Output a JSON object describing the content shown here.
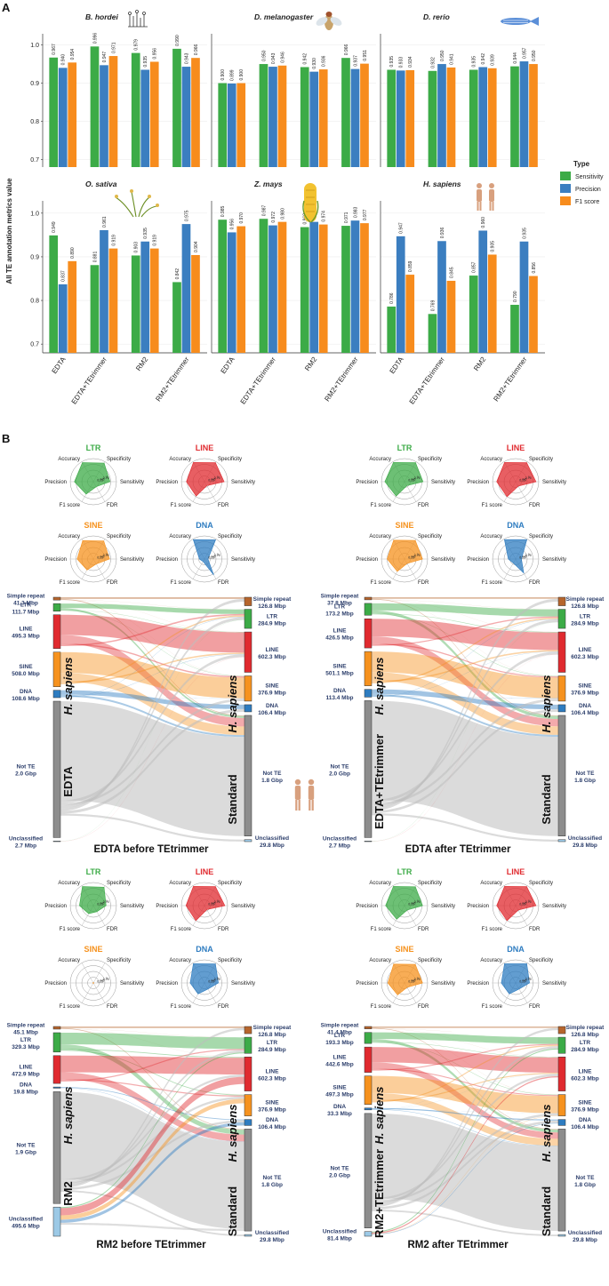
{
  "panels": {
    "a": "A",
    "b": "B"
  },
  "colors": {
    "Sensitivity": "#3cab47",
    "Precision": "#3b7ec0",
    "F1 score": "#f78c1d",
    "LTR": "#3cab47",
    "LINE": "#e02a2f",
    "SINE": "#f6921e",
    "DNA": "#2e7cc0",
    "Simple repeat": "#b6652c",
    "Not TE": "#8d8d8d",
    "Unclassified": "#9cc9e6"
  },
  "chart_data": [
    {
      "type": "bar",
      "ylabel": "All TE annotation metrics value",
      "ylim": [
        0.68,
        1.02
      ],
      "legend_title": "Type",
      "legend": [
        "Sensitivity",
        "Precision",
        "F1 score"
      ],
      "categories": [
        "EDTA",
        "EDTA+TEtrimmer",
        "RM2",
        "RM2+TEtrimmer"
      ],
      "facets": [
        {
          "title": "B. hordei",
          "values": [
            [
              0.967,
              0.94,
              0.954
            ],
            [
              0.996,
              0.947,
              0.971
            ],
            [
              0.979,
              0.935,
              0.956
            ],
            [
              0.99,
              0.943,
              0.966
            ]
          ]
        },
        {
          "title": "D. melanogaster",
          "values": [
            [
              0.9,
              0.899,
              0.9
            ],
            [
              0.95,
              0.943,
              0.946
            ],
            [
              0.942,
              0.93,
              0.936
            ],
            [
              0.966,
              0.937,
              0.951
            ]
          ]
        },
        {
          "title": "D. rerio",
          "values": [
            [
              0.935,
              0.933,
              0.934
            ],
            [
              0.932,
              0.95,
              0.941
            ],
            [
              0.935,
              0.942,
              0.939
            ],
            [
              0.944,
              0.957,
              0.95
            ]
          ]
        },
        {
          "title": "O. sativa",
          "values": [
            [
              0.949,
              0.837,
              0.89
            ],
            [
              0.881,
              0.961,
              0.919
            ],
            [
              0.903,
              0.935,
              0.919
            ],
            [
              0.842,
              0.975,
              0.904
            ]
          ]
        },
        {
          "title": "Z. mays",
          "values": [
            [
              0.985,
              0.956,
              0.97
            ],
            [
              0.987,
              0.972,
              0.98
            ],
            [
              0.968,
              0.98,
              0.974
            ],
            [
              0.971,
              0.983,
              0.977
            ]
          ]
        },
        {
          "title": "H. sapiens",
          "values": [
            [
              0.786,
              0.947,
              0.859
            ],
            [
              0.769,
              0.936,
              0.845
            ],
            [
              0.857,
              0.96,
              0.905
            ],
            [
              0.79,
              0.935,
              0.856
            ]
          ]
        }
      ]
    },
    {
      "type": "radar",
      "axes": [
        "Accuracy",
        "Specificity",
        "Sensitivity",
        "FDR",
        "F1 score",
        "Precision"
      ],
      "ticks": [
        "0.25",
        "0.5",
        "0.75",
        "1"
      ],
      "groups": [
        {
          "title": "EDTA before TEtrimmer",
          "series": [
            {
              "name": "LTR",
              "values": [
                0.95,
                0.93,
                0.72,
                0.25,
                0.62,
                0.82
              ]
            },
            {
              "name": "LINE",
              "values": [
                0.96,
                0.95,
                0.85,
                0.2,
                0.72,
                0.78
              ]
            },
            {
              "name": "SINE",
              "values": [
                0.92,
                0.9,
                0.7,
                0.25,
                0.55,
                0.7
              ]
            },
            {
              "name": "DNA",
              "values": [
                0.97,
                0.96,
                0.15,
                0.8,
                0.12,
                0.22
              ]
            }
          ]
        },
        {
          "title": "EDTA after TEtrimmer",
          "series": [
            {
              "name": "LTR",
              "values": [
                0.96,
                0.95,
                0.8,
                0.2,
                0.72,
                0.85
              ]
            },
            {
              "name": "LINE",
              "values": [
                0.96,
                0.95,
                0.88,
                0.22,
                0.75,
                0.82
              ]
            },
            {
              "name": "SINE",
              "values": [
                0.94,
                0.93,
                0.78,
                0.22,
                0.62,
                0.75
              ]
            },
            {
              "name": "DNA",
              "values": [
                0.97,
                0.97,
                0.25,
                0.7,
                0.2,
                0.32
              ]
            }
          ]
        },
        {
          "title": "RM2 before TEtrimmer",
          "series": [
            {
              "name": "LTR",
              "values": [
                0.95,
                0.92,
                0.55,
                0.3,
                0.4,
                0.6
              ]
            },
            {
              "name": "LINE",
              "values": [
                0.96,
                0.95,
                0.88,
                0.2,
                0.75,
                0.8
              ]
            },
            {
              "name": "SINE",
              "values": [
                0.02,
                0.02,
                0.02,
                0.02,
                0.02,
                0.02
              ]
            },
            {
              "name": "DNA",
              "values": [
                0.96,
                0.95,
                0.6,
                0.3,
                0.55,
                0.62
              ]
            }
          ]
        },
        {
          "title": "RM2 after TEtrimmer",
          "series": [
            {
              "name": "LTR",
              "values": [
                0.96,
                0.94,
                0.78,
                0.22,
                0.68,
                0.82
              ]
            },
            {
              "name": "LINE",
              "values": [
                0.96,
                0.95,
                0.88,
                0.22,
                0.75,
                0.82
              ]
            },
            {
              "name": "SINE",
              "values": [
                0.94,
                0.93,
                0.78,
                0.22,
                0.6,
                0.72
              ]
            },
            {
              "name": "DNA",
              "values": [
                0.96,
                0.96,
                0.6,
                0.3,
                0.55,
                0.62
              ]
            }
          ]
        }
      ]
    },
    {
      "type": "sankey",
      "species": "H. sapiens",
      "standard": {
        "name": "Standard",
        "nodes": [
          {
            "cat": "Simple repeat",
            "label": "Simple repeat",
            "value": "126.8 Mbp",
            "mb": 126.8
          },
          {
            "cat": "LTR",
            "label": "LTR",
            "value": "284.9 Mbp",
            "mb": 284.9
          },
          {
            "cat": "LINE",
            "label": "LINE",
            "value": "602.3 Mbp",
            "mb": 602.3
          },
          {
            "cat": "SINE",
            "label": "SINE",
            "value": "376.9 Mbp",
            "mb": 376.9
          },
          {
            "cat": "DNA",
            "label": "DNA",
            "value": "106.4 Mbp",
            "mb": 106.4
          },
          {
            "cat": "Not TE",
            "label": "Not TE",
            "value": "1.8 Gbp",
            "mb": 1800
          },
          {
            "cat": "Unclassified",
            "label": "Unclassified",
            "value": "29.8 Mbp",
            "mb": 29.8
          }
        ]
      },
      "diagrams": [
        {
          "title": "EDTA before TEtrimmer",
          "method": "EDTA",
          "nodes": [
            {
              "cat": "Simple repeat",
              "label": "Simple repeat",
              "value": "41.3 Mbp",
              "mb": 41.3
            },
            {
              "cat": "LTR",
              "label": "LTR",
              "value": "111.7 Mbp",
              "mb": 111.7
            },
            {
              "cat": "LINE",
              "label": "LINE",
              "value": "495.3 Mbp",
              "mb": 495.3
            },
            {
              "cat": "SINE",
              "label": "SINE",
              "value": "508.0 Mbp",
              "mb": 508.0
            },
            {
              "cat": "DNA",
              "label": "DNA",
              "value": "108.6 Mbp",
              "mb": 108.6
            },
            {
              "cat": "Not TE",
              "label": "Not TE",
              "value": "2.0 Gbp",
              "mb": 2000
            },
            {
              "cat": "Unclassified",
              "label": "Unclassified",
              "value": "2.7 Mbp",
              "mb": 2.7
            }
          ]
        },
        {
          "title": "EDTA after TEtrimmer",
          "method": "EDTA+TEtrimmer",
          "nodes": [
            {
              "cat": "Simple repeat",
              "label": "Simple repeat",
              "value": "37.8 Mbp",
              "mb": 37.8
            },
            {
              "cat": "LTR",
              "label": "LTR",
              "value": "173.2 Mbp",
              "mb": 173.2
            },
            {
              "cat": "LINE",
              "label": "LINE",
              "value": "426.5 Mbp",
              "mb": 426.5
            },
            {
              "cat": "SINE",
              "label": "SINE",
              "value": "501.1 Mbp",
              "mb": 501.1
            },
            {
              "cat": "DNA",
              "label": "DNA",
              "value": "113.4 Mbp",
              "mb": 113.4
            },
            {
              "cat": "Not TE",
              "label": "Not TE",
              "value": "2.0 Gbp",
              "mb": 2000
            },
            {
              "cat": "Unclassified",
              "label": "Unclassified",
              "value": "2.7 Mbp",
              "mb": 2.7
            }
          ]
        },
        {
          "title": "RM2 before TEtrimmer",
          "method": "RM2",
          "nodes": [
            {
              "cat": "Simple repeat",
              "label": "Simple repeat",
              "value": "45.1 Mbp",
              "mb": 45.1
            },
            {
              "cat": "LTR",
              "label": "LTR",
              "value": "329.3 Mbp",
              "mb": 329.3
            },
            {
              "cat": "LINE",
              "label": "LINE",
              "value": "472.9 Mbp",
              "mb": 472.9
            },
            {
              "cat": "DNA",
              "label": "DNA",
              "value": "19.8 Mbp",
              "mb": 19.8
            },
            {
              "cat": "Not TE",
              "label": "Not TE",
              "value": "1.9 Gbp",
              "mb": 1900
            },
            {
              "cat": "Unclassified",
              "label": "Unclassified",
              "value": "495.6 Mbp",
              "mb": 495.6
            }
          ]
        },
        {
          "title": "RM2 after TEtrimmer",
          "method": "RM2+TEtrimmer",
          "nodes": [
            {
              "cat": "Simple repeat",
              "label": "Simple repeat",
              "value": "41.4 Mbp",
              "mb": 41.4
            },
            {
              "cat": "LTR",
              "label": "LTR",
              "value": "193.3 Mbp",
              "mb": 193.3
            },
            {
              "cat": "LINE",
              "label": "LINE",
              "value": "442.6 Mbp",
              "mb": 442.6
            },
            {
              "cat": "SINE",
              "label": "SINE",
              "value": "497.3 Mbp",
              "mb": 497.3
            },
            {
              "cat": "DNA",
              "label": "DNA",
              "value": "33.3 Mbp",
              "mb": 33.3
            },
            {
              "cat": "Not TE",
              "label": "Not TE",
              "value": "2.0 Gbp",
              "mb": 2000
            },
            {
              "cat": "Unclassified",
              "label": "Unclassified",
              "value": "81.4 Mbp",
              "mb": 81.4
            }
          ]
        }
      ]
    }
  ]
}
